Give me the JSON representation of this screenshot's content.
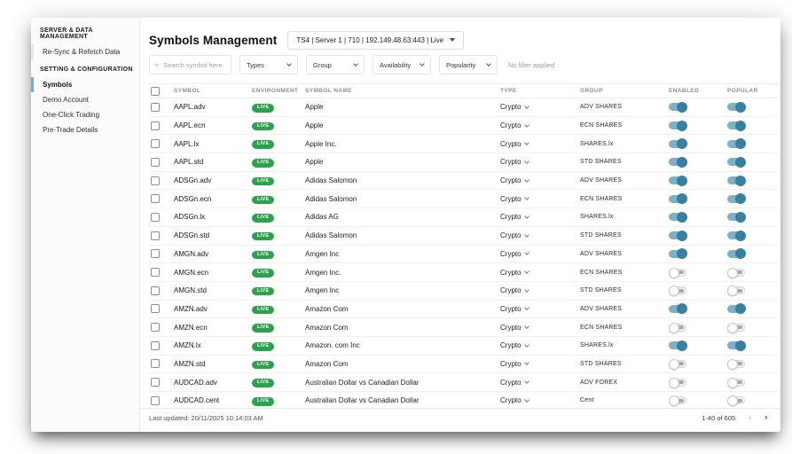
{
  "sidebar": {
    "sections": [
      {
        "label": "SERVER & DATA MANAGEMENT",
        "items": [
          {
            "label": "Re-Sync & Refetch Data",
            "active": false,
            "accent": "gray"
          }
        ]
      },
      {
        "label": "SETTING & CONFIGURATION",
        "items": [
          {
            "label": "Symbols",
            "active": true,
            "accent": "blue"
          },
          {
            "label": "Demo Account",
            "active": false,
            "accent": "none"
          },
          {
            "label": "One-Click Trading",
            "active": false,
            "accent": "none"
          },
          {
            "label": "Pre-Trade Details",
            "active": false,
            "accent": "none"
          }
        ]
      }
    ]
  },
  "header": {
    "title": "Symbols Management",
    "server_selector": "TS4 | Server 1 | 710 | 192.149.48.63:443 | Live"
  },
  "filters": {
    "search_placeholder": "Search symbol here",
    "dropdowns": [
      "Types",
      "Group",
      "Availability",
      "Popularity"
    ],
    "status": "No filter applied"
  },
  "table": {
    "columns": [
      "SYMBOL",
      "ENVIRONMENT",
      "SYMBOL NAME",
      "TYPE",
      "GROUP",
      "ENABLED",
      "POPULAR"
    ],
    "rows": [
      {
        "symbol": "AAPL.adv",
        "environment": "LIVE",
        "name": "Apple",
        "type": "Crypto",
        "group": "ADV SHARES",
        "enabled": true,
        "popular": true
      },
      {
        "symbol": "AAPL.ecn",
        "environment": "LIVE",
        "name": "Apple",
        "type": "Crypto",
        "group": "ECN SHARES",
        "enabled": true,
        "popular": true
      },
      {
        "symbol": "AAPL.lx",
        "environment": "LIVE",
        "name": "Apple Inc.",
        "type": "Crypto",
        "group": "SHARES.lx",
        "enabled": true,
        "popular": true
      },
      {
        "symbol": "AAPL.std",
        "environment": "LIVE",
        "name": "Apple",
        "type": "Crypto",
        "group": "STD SHARES",
        "enabled": true,
        "popular": true
      },
      {
        "symbol": "ADSGn.adv",
        "environment": "LIVE",
        "name": "Adidas Salomon",
        "type": "Crypto",
        "group": "ADV SHARES",
        "enabled": true,
        "popular": true
      },
      {
        "symbol": "ADSGn.ecn",
        "environment": "LIVE",
        "name": "Adidas Salomon",
        "type": "Crypto",
        "group": "ECN SHARES",
        "enabled": true,
        "popular": true
      },
      {
        "symbol": "ADSGn.lx",
        "environment": "LIVE",
        "name": "Adidas AG",
        "type": "Crypto",
        "group": "SHARES.lx",
        "enabled": true,
        "popular": true
      },
      {
        "symbol": "ADSGn.std",
        "environment": "LIVE",
        "name": "Adidas Salomon",
        "type": "Crypto",
        "group": "STD SHARES",
        "enabled": true,
        "popular": true
      },
      {
        "symbol": "AMGN.adv",
        "environment": "LIVE",
        "name": "Amgen Inc",
        "type": "Crypto",
        "group": "ADV SHARES",
        "enabled": true,
        "popular": true
      },
      {
        "symbol": "AMGN.ecn",
        "environment": "LIVE",
        "name": "Amgen Inc.",
        "type": "Crypto",
        "group": "ECN SHARES",
        "enabled": false,
        "popular": false
      },
      {
        "symbol": "AMGN.std",
        "environment": "LIVE",
        "name": "Amgen Inc",
        "type": "Crypto",
        "group": "STD SHARES",
        "enabled": false,
        "popular": false
      },
      {
        "symbol": "AMZN.adv",
        "environment": "LIVE",
        "name": "Amazon Com",
        "type": "Crypto",
        "group": "ADV SHARES",
        "enabled": true,
        "popular": true
      },
      {
        "symbol": "AMZN.ecn",
        "environment": "LIVE",
        "name": "Amazon Com",
        "type": "Crypto",
        "group": "ECN SHARES",
        "enabled": false,
        "popular": false
      },
      {
        "symbol": "AMZN.lx",
        "environment": "LIVE",
        "name": "Amazon. com Inc",
        "type": "Crypto",
        "group": "SHARES.lx",
        "enabled": true,
        "popular": true
      },
      {
        "symbol": "AMZN.std",
        "environment": "LIVE",
        "name": "Amazon Com",
        "type": "Crypto",
        "group": "STD SHARES",
        "enabled": false,
        "popular": false
      },
      {
        "symbol": "AUDCAD.adv",
        "environment": "LIVE",
        "name": "Australian Dollar vs Canadian Dollar",
        "type": "Crypto",
        "group": "ADV FOREX",
        "enabled": false,
        "popular": false
      },
      {
        "symbol": "AUDCAD.cent",
        "environment": "LIVE",
        "name": "Australian Dollar vs Canadian Dollar",
        "type": "Crypto",
        "group": "Cent",
        "enabled": false,
        "popular": false
      }
    ]
  },
  "footer": {
    "last_updated": "Last updated: 20/11/2025 10:14:03 AM",
    "range": "1-40 of 605",
    "prev_label": "‹",
    "next_label": "›"
  },
  "colors": {
    "accent_blue": "#79a8d0",
    "toggle_on_track": "#7db1c5",
    "toggle_on_knob": "#37809f",
    "live_badge": "#2da14b"
  }
}
